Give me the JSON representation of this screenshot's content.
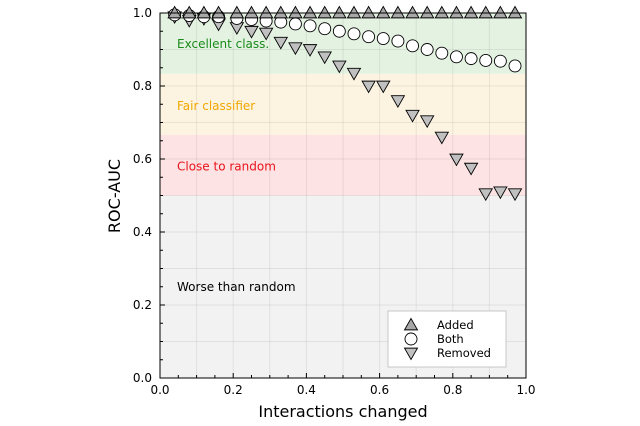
{
  "chart_data": {
    "type": "scatter",
    "xlabel": "Interactions changed",
    "ylabel": "ROC-AUC",
    "xlim": [
      0.0,
      1.0
    ],
    "ylim": [
      0.0,
      1.0
    ],
    "xticks": [
      "0.0",
      "0.2",
      "0.4",
      "0.6",
      "0.8",
      "1.0"
    ],
    "yticks": [
      "0.0",
      "0.2",
      "0.4",
      "0.6",
      "0.8",
      "1.0"
    ],
    "grid": true,
    "legend_position": "bottom-right",
    "bands": [
      {
        "label": "Worse than random",
        "from": 0.0,
        "to": 0.5,
        "color": "#f2f2f2",
        "text_color": "#000000"
      },
      {
        "label": "Close to random",
        "from": 0.5,
        "to": 0.6667,
        "color": "#fde3e3",
        "text_color": "#e8141c"
      },
      {
        "label": "Fair classifier",
        "from": 0.6667,
        "to": 0.8333,
        "color": "#fdf3e1",
        "text_color": "#f0a800"
      },
      {
        "label": "Excellent class.",
        "from": 0.8333,
        "to": 1.0,
        "color": "#e4f2e2",
        "text_color": "#1a8a1a"
      }
    ],
    "x": [
      0.04,
      0.08,
      0.12,
      0.16,
      0.21,
      0.25,
      0.29,
      0.33,
      0.37,
      0.41,
      0.45,
      0.49,
      0.53,
      0.57,
      0.61,
      0.65,
      0.69,
      0.73,
      0.77,
      0.81,
      0.85,
      0.89,
      0.93,
      0.97
    ],
    "series": [
      {
        "name": "Added",
        "marker": "triangle-up",
        "fill": "#a8a8a8",
        "values": [
          1.0,
          1.0,
          1.0,
          1.0,
          1.0,
          1.0,
          1.0,
          1.0,
          1.0,
          1.0,
          1.0,
          1.0,
          1.0,
          1.0,
          1.0,
          1.0,
          1.0,
          1.0,
          1.0,
          1.0,
          1.0,
          1.0,
          1.0,
          1.0
        ]
      },
      {
        "name": "Both",
        "marker": "circle",
        "fill": "#ffffff",
        "values": [
          0.995,
          0.993,
          0.99,
          0.99,
          0.985,
          0.982,
          0.978,
          0.975,
          0.97,
          0.965,
          0.957,
          0.95,
          0.943,
          0.935,
          0.93,
          0.923,
          0.91,
          0.9,
          0.89,
          0.88,
          0.875,
          0.87,
          0.868,
          0.855
        ]
      },
      {
        "name": "Removed",
        "marker": "triangle-down",
        "fill": "#c0c0c0",
        "values": [
          0.99,
          0.98,
          0.985,
          0.97,
          0.96,
          0.95,
          0.945,
          0.92,
          0.905,
          0.9,
          0.88,
          0.855,
          0.835,
          0.8,
          0.8,
          0.76,
          0.72,
          0.705,
          0.66,
          0.6,
          0.575,
          0.505,
          0.51,
          0.505
        ]
      }
    ]
  }
}
